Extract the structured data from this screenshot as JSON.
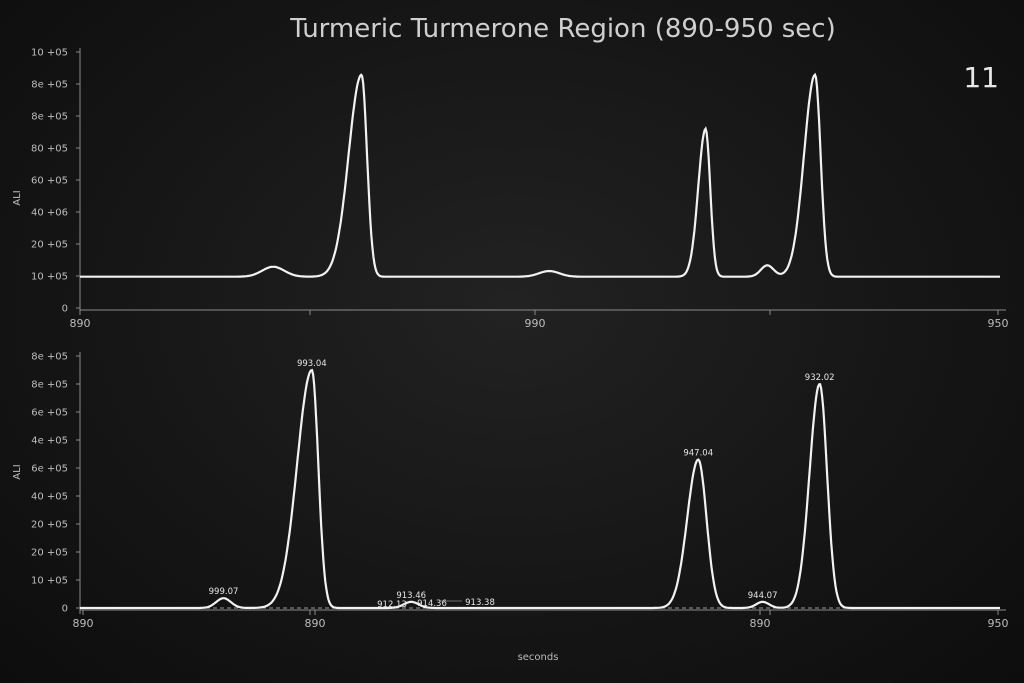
{
  "title": "Turmeric Turmerone Region (890-950 sec)",
  "panel_number": "11",
  "colors": {
    "background": "#141414",
    "trace": "#f2f2f2",
    "axis": "#8a8a8a",
    "text": "#bdbdbd"
  },
  "chart_data": [
    {
      "type": "line",
      "ylabel": "ALI",
      "xlabel": "",
      "x_ticks": [
        "890",
        "990",
        "950"
      ],
      "y_ticks": [
        "10 +05",
        "8e +05",
        "8e +05",
        "80 +05",
        "60 +05",
        "40 +06",
        "20 +05",
        "10 +05",
        "0"
      ],
      "ylim": [
        0,
        9
      ],
      "baseline": 1.1,
      "peaks": [
        {
          "x": 0.21,
          "height": 0.35,
          "width": 0.012
        },
        {
          "x": 0.306,
          "height": 7.1,
          "width": 0.014,
          "right_width": 0.006
        },
        {
          "x": 0.51,
          "height": 0.2,
          "width": 0.011
        },
        {
          "x": 0.68,
          "height": 5.2,
          "width": 0.008,
          "right_width": 0.005
        },
        {
          "x": 0.747,
          "height": 0.4,
          "width": 0.007
        },
        {
          "x": 0.799,
          "height": 7.1,
          "width": 0.012,
          "right_width": 0.006
        }
      ]
    },
    {
      "type": "line",
      "ylabel": "ALI",
      "xlabel": "seconds",
      "x_ticks": [
        "890",
        "890",
        "890",
        "950"
      ],
      "y_ticks": [
        "8e +05",
        "8e +05",
        "6e +05",
        "4e +05",
        "6e +05",
        "40 +05",
        "20 +05",
        "20 +05",
        "10 +05",
        "0"
      ],
      "ylim": [
        0,
        9
      ],
      "baseline": 0,
      "peaks": [
        {
          "x": 0.156,
          "height": 0.35,
          "width": 0.008,
          "label": "999.07"
        },
        {
          "x": 0.252,
          "height": 8.5,
          "width": 0.016,
          "right_width": 0.007,
          "label": "993.04"
        },
        {
          "x": 0.36,
          "height": 0.22,
          "width": 0.008,
          "label": "913.46"
        },
        {
          "x": 0.672,
          "height": 5.3,
          "width": 0.012,
          "right_width": 0.009,
          "label": "947.04"
        },
        {
          "x": 0.742,
          "height": 0.22,
          "width": 0.007,
          "label": "944.07"
        },
        {
          "x": 0.804,
          "height": 8.0,
          "width": 0.011,
          "right_width": 0.008,
          "label": "932.02"
        }
      ],
      "extra_labels": [
        "912.13",
        "914.36",
        "913.38"
      ]
    }
  ]
}
